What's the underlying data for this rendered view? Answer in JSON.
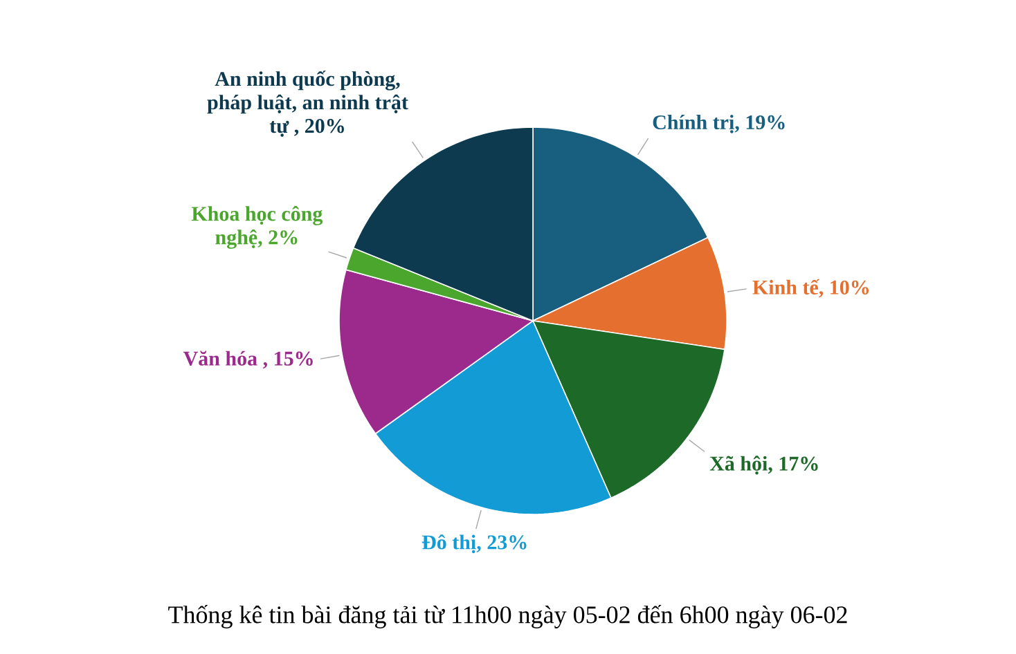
{
  "chart_data": {
    "type": "pie",
    "title": "Thống kê tin bài đăng tải từ 11h00 ngày 05-02 đến 6h00 ngày 06-02",
    "categories": [
      "Chính trị",
      "Kinh tế",
      "Xã hội",
      "Đô thị",
      "Văn hóa ",
      "Khoa học công nghệ",
      "An ninh quốc phòng, pháp luật, an ninh trật tự "
    ],
    "values": [
      19,
      10,
      17,
      23,
      15,
      2,
      20
    ],
    "value_labels": [
      ", 19%",
      ", 10%",
      ", 17%",
      ", 23%",
      ", 15%",
      ", 2%",
      ", 20%"
    ],
    "colors": [
      "#175e7f",
      "#e46f2f",
      "#1d6a28",
      "#129bd4",
      "#9c2a8c",
      "#4ba62e",
      "#0d3a4e"
    ]
  }
}
